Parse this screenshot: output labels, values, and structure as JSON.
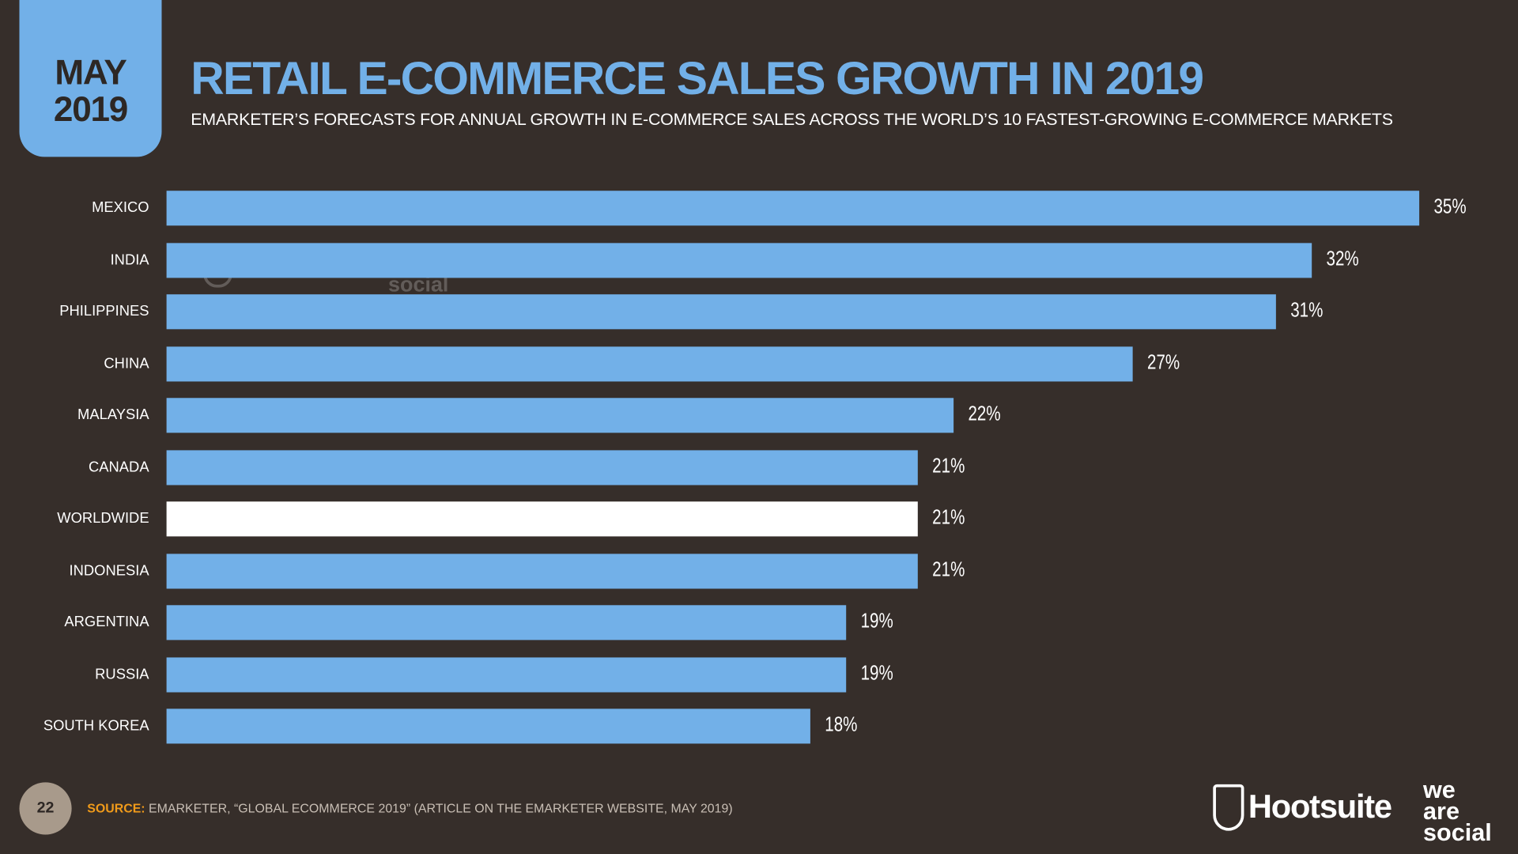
{
  "header": {
    "date_month": "MAY",
    "date_year": "2019",
    "title": "RETAIL E-COMMERCE SALES GROWTH IN 2019",
    "subtitle": "EMARKETER’S FORECASTS FOR ANNUAL GROWTH IN E-COMMERCE SALES ACROSS THE WORLD’S 10 FASTEST-GROWING E-COMMERCE MARKETS"
  },
  "chart_data": {
    "type": "bar",
    "orientation": "horizontal",
    "title": "RETAIL E-COMMERCE SALES GROWTH IN 2019",
    "categories": [
      "MEXICO",
      "INDIA",
      "PHILIPPINES",
      "CHINA",
      "MALAYSIA",
      "CANADA",
      "WORLDWIDE",
      "INDONESIA",
      "ARGENTINA",
      "RUSSIA",
      "SOUTH KOREA"
    ],
    "values": [
      35,
      32,
      31,
      27,
      22,
      21,
      21,
      21,
      19,
      19,
      18
    ],
    "labels": [
      "35%",
      "32%",
      "31%",
      "27%",
      "22%",
      "21%",
      "21%",
      "21%",
      "19%",
      "19%",
      "18%"
    ],
    "unit": "%",
    "xlim": [
      0,
      35
    ],
    "grid": false,
    "colors": {
      "bar": "#72b0e8",
      "highlight": "#ffffff",
      "highlight_category": "WORLDWIDE"
    }
  },
  "footer": {
    "page": "22",
    "source_label": "SOURCE:",
    "source_text": "EMARKETER, “GLOBAL ECOMMERCE 2019” (ARTICLE ON THE EMARKETER WEBSITE, MAY 2019)",
    "logo_hootsuite": "Hootsuite",
    "logo_was": "we are social"
  }
}
